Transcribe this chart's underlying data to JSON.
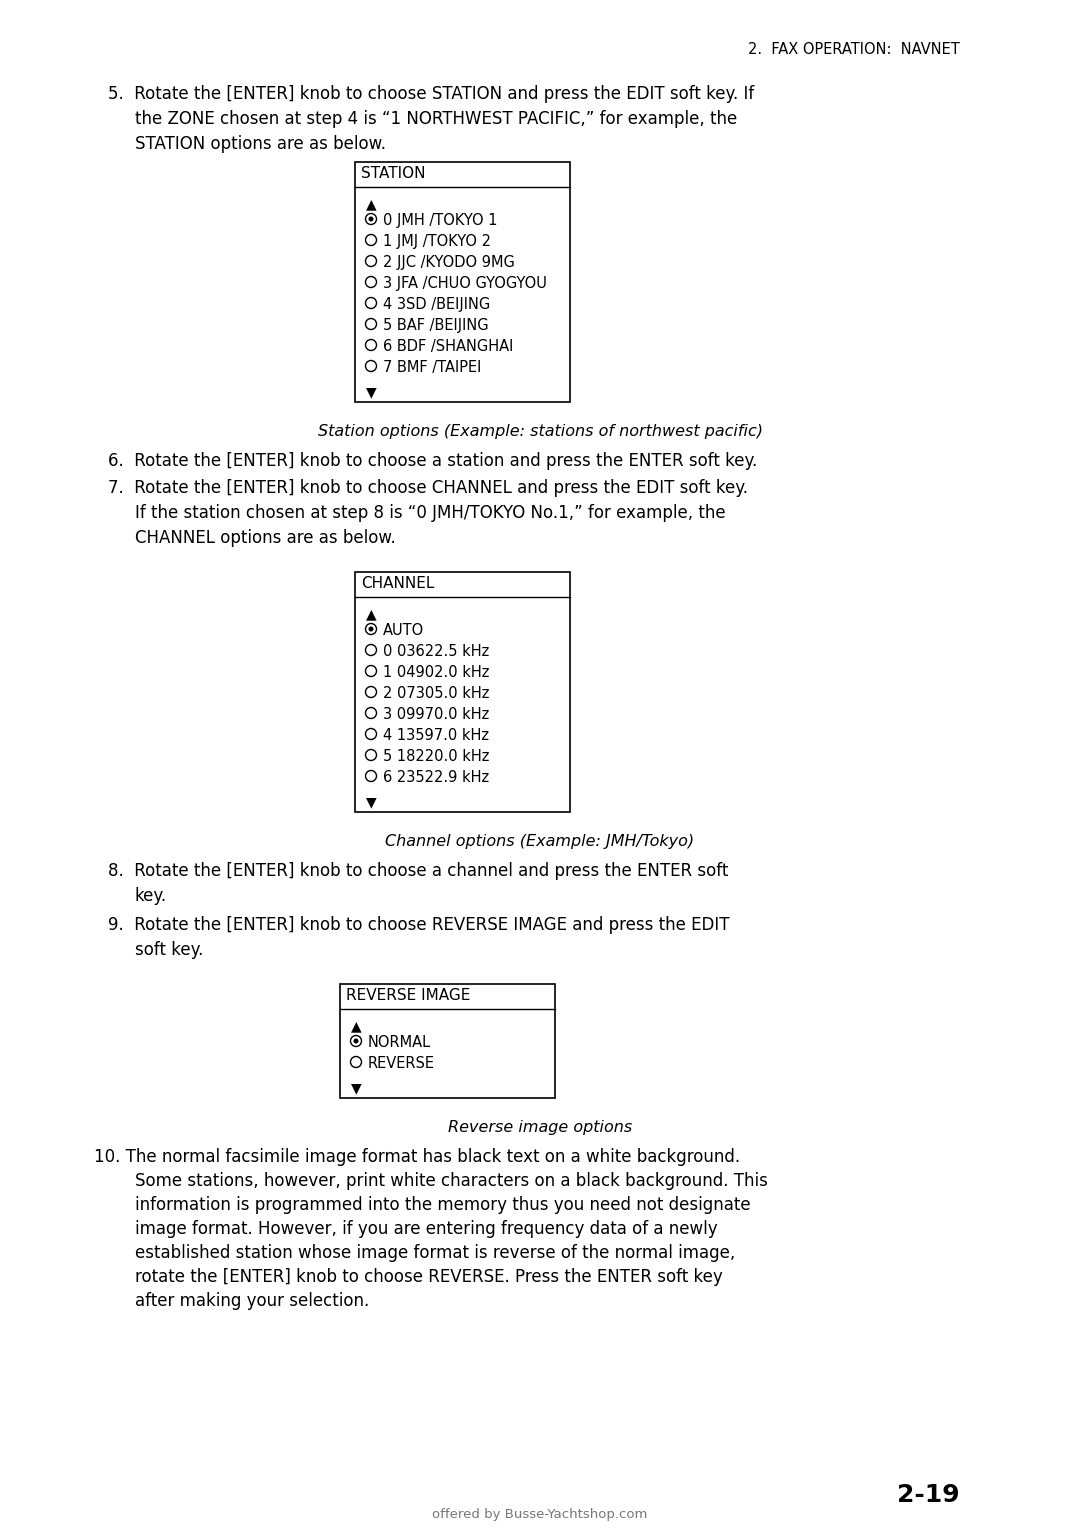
{
  "page_header": "2.  FAX OPERATION:  NAVNET",
  "bg_color": "#ffffff",
  "text_color": "#000000",
  "page_number": "2-19",
  "footer": "offered by Busse-Yachtshop.com",
  "step5_text": [
    "5.  Rotate the [ENTER] knob to choose STATION and press the EDIT soft key. If",
    "    the ZONE chosen at step 4 is “1 NORTHWEST PACIFIC,” for example, the",
    "    STATION options are as below."
  ],
  "station_box_title": "STATION",
  "station_box_items": [
    {
      "symbol": "filled_dot",
      "text": "0 JMH /TOKYO 1"
    },
    {
      "symbol": "open_dot",
      "text": "1 JMJ /TOKYO 2"
    },
    {
      "symbol": "open_dot",
      "text": "2 JJC /KYODO 9MG"
    },
    {
      "symbol": "open_dot",
      "text": "3 JFA /CHUO GYOGYOU"
    },
    {
      "symbol": "open_dot",
      "text": "4 3SD /BEIJING"
    },
    {
      "symbol": "open_dot",
      "text": "5 BAF /BEIJING"
    },
    {
      "symbol": "open_dot",
      "text": "6 BDF /SHANGHAI"
    },
    {
      "symbol": "open_dot",
      "text": "7 BMF /TAIPEI"
    }
  ],
  "station_caption": "Station options (Example: stations of northwest pacific)",
  "step6_text": "6.  Rotate the [ENTER] knob to choose a station and press the ENTER soft key.",
  "step7_text": [
    "7.  Rotate the [ENTER] knob to choose CHANNEL and press the EDIT soft key.",
    "    If the station chosen at step 8 is “0 JMH/TOKYO No.1,” for example, the",
    "    CHANNEL options are as below."
  ],
  "channel_box_title": "CHANNEL",
  "channel_box_items": [
    {
      "symbol": "filled_dot",
      "text": "AUTO"
    },
    {
      "symbol": "open_dot",
      "text": "0 03622.5 kHz"
    },
    {
      "symbol": "open_dot",
      "text": "1 04902.0 kHz"
    },
    {
      "symbol": "open_dot",
      "text": "2 07305.0 kHz"
    },
    {
      "symbol": "open_dot",
      "text": "3 09970.0 kHz"
    },
    {
      "symbol": "open_dot",
      "text": "4 13597.0 kHz"
    },
    {
      "symbol": "open_dot",
      "text": "5 18220.0 kHz"
    },
    {
      "symbol": "open_dot",
      "text": "6 23522.9 kHz"
    }
  ],
  "channel_caption": "Channel options (Example: JMH/Tokyo)",
  "step8_text": [
    "8.  Rotate the [ENTER] knob to choose a channel and press the ENTER soft",
    "    key."
  ],
  "step9_text": [
    "9.  Rotate the [ENTER] knob to choose REVERSE IMAGE and press the EDIT",
    "    soft key."
  ],
  "reverse_box_title": "REVERSE IMAGE",
  "reverse_box_items": [
    {
      "symbol": "filled_dot",
      "text": "NORMAL"
    },
    {
      "symbol": "open_dot",
      "text": "REVERSE"
    }
  ],
  "reverse_caption": "Reverse image options",
  "step10_text": [
    "10. The normal facsimile image format has black text on a white background.",
    "    Some stations, however, print white characters on a black background. This",
    "    information is programmed into the memory thus you need not designate",
    "    image format. However, if you are entering frequency data of a newly",
    "    established station whose image format is reverse of the normal image,",
    "    rotate the [ENTER] knob to choose REVERSE. Press the ENTER soft key",
    "    after making your selection."
  ]
}
